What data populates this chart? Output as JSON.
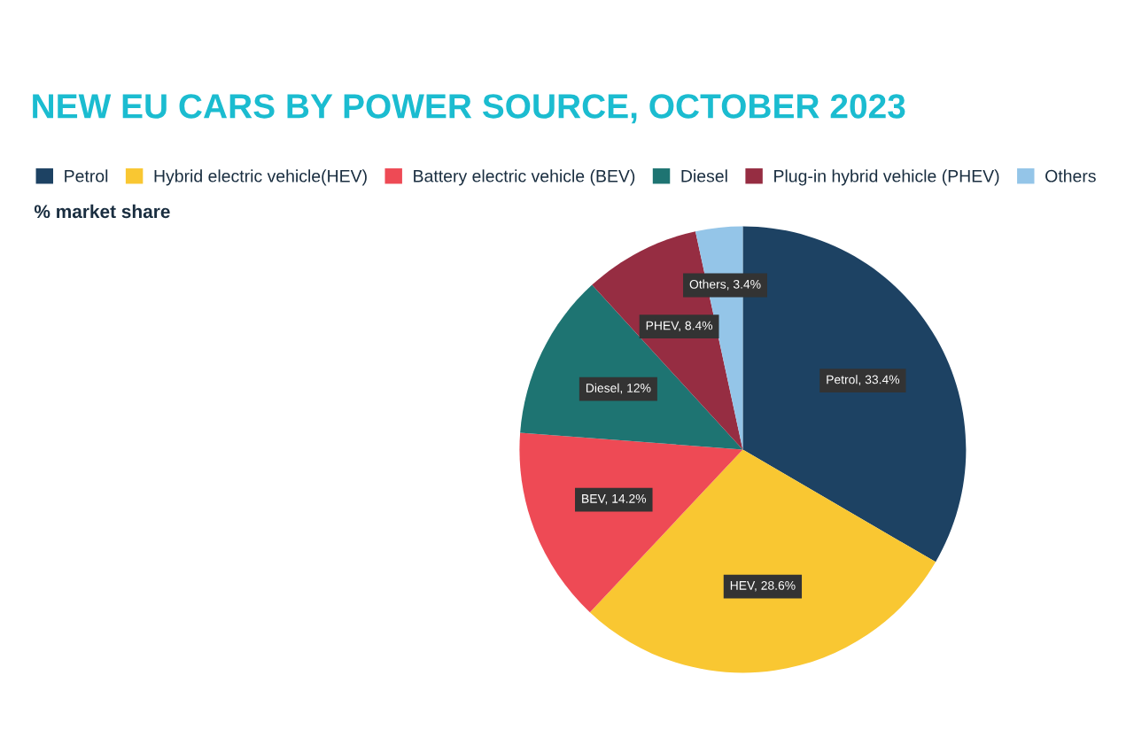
{
  "chart_data": {
    "type": "pie",
    "title": "NEW EU CARS BY POWER SOURCE, OCTOBER 2023",
    "subtitle": "% market share",
    "categories": [
      "Petrol",
      "Hybrid electric vehicle(HEV)",
      "Battery electric vehicle (BEV)",
      "Diesel",
      "Plug-in hybrid vehicle (PHEV)",
      "Others"
    ],
    "values": [
      33.4,
      28.6,
      14.2,
      12,
      8.4,
      3.4
    ],
    "colors": [
      "#1d4263",
      "#f9c732",
      "#ee4a55",
      "#1e7472",
      "#962d42",
      "#94c5e8"
    ],
    "value_labels": [
      "Petrol, 33.4%",
      "HEV, 28.6%",
      "BEV, 14.2%",
      "Diesel, 12%",
      "PHEV, 8.4%",
      "Others, 3.4%"
    ],
    "legend": "top"
  }
}
